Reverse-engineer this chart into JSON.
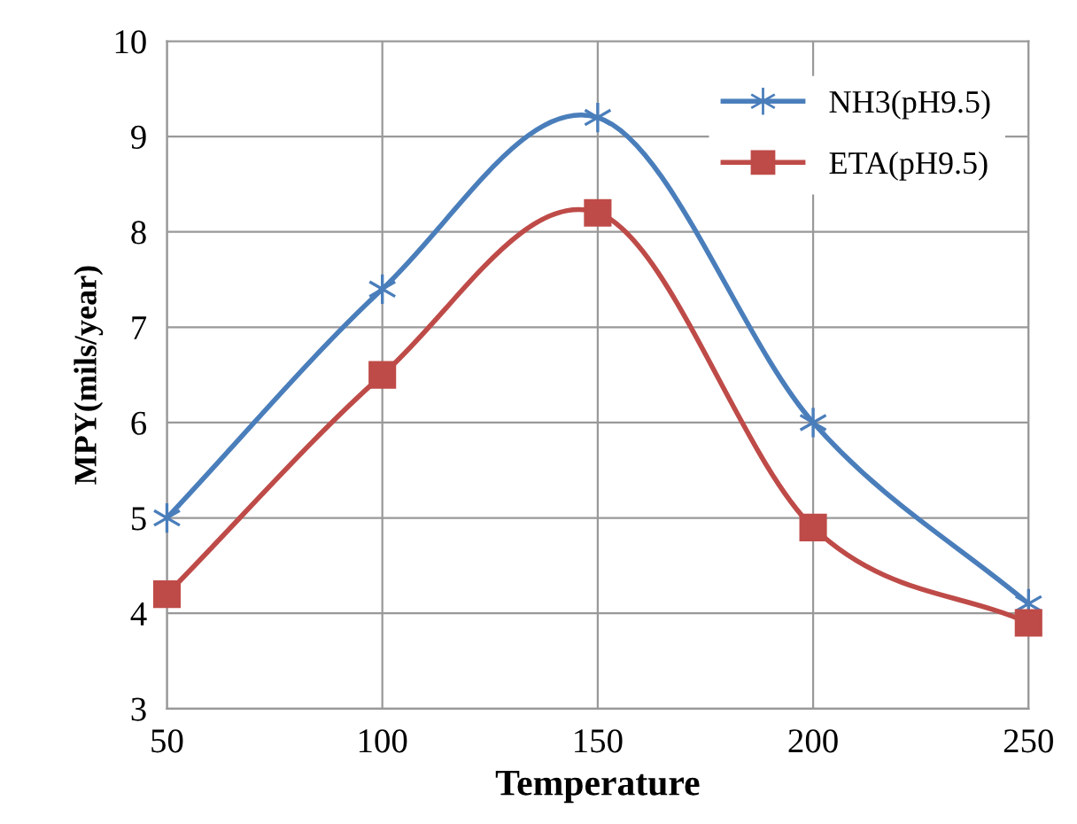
{
  "chart_data": {
    "type": "line",
    "xlabel": "Temperature",
    "ylabel": "MPY(mils/year)",
    "x": [
      50,
      100,
      150,
      200,
      250
    ],
    "series": [
      {
        "name": "NH3(pH9.5)",
        "color": "#4a7ebb",
        "marker": "cross",
        "values": [
          5.0,
          7.4,
          9.2,
          6.0,
          4.1
        ]
      },
      {
        "name": "ETA(pH9.5)",
        "color": "#be4b48",
        "marker": "square",
        "values": [
          4.2,
          6.5,
          8.2,
          4.9,
          3.9
        ]
      }
    ],
    "xlim": [
      50,
      250
    ],
    "xticks": [
      50,
      100,
      150,
      200,
      250
    ],
    "ylim": [
      3,
      10
    ],
    "yticks": [
      3,
      4,
      5,
      6,
      7,
      8,
      9,
      10
    ],
    "grid": true,
    "legend": "top right",
    "line_style": "solid"
  }
}
